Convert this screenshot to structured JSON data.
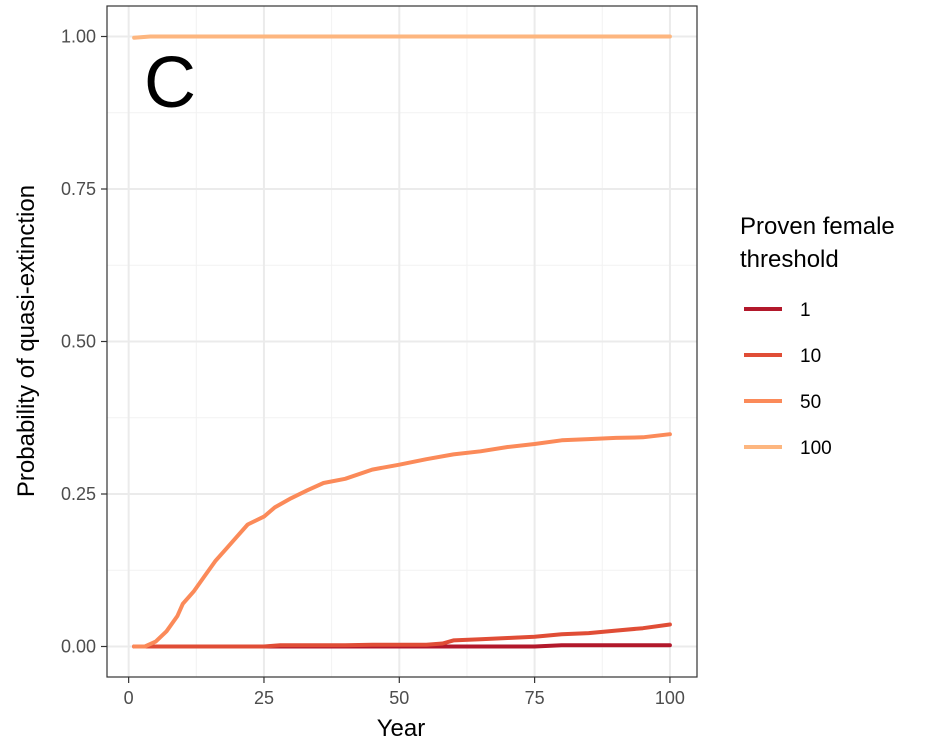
{
  "chart_data": {
    "type": "line",
    "panel_label": "C",
    "xlabel": "Year",
    "ylabel": "Probability of quasi-extinction",
    "xlim": [
      -4,
      105
    ],
    "ylim": [
      -0.05,
      1.05
    ],
    "x_ticks": [
      0,
      25,
      50,
      75,
      100
    ],
    "x_tick_labels": [
      "0",
      "25",
      "50",
      "75",
      "100"
    ],
    "y_ticks": [
      0,
      0.25,
      0.5,
      0.75,
      1
    ],
    "y_tick_labels": [
      "0.00",
      "0.25",
      "0.50",
      "0.75",
      "1.00"
    ],
    "grid": true,
    "legend": {
      "title_lines": [
        "Proven female",
        "threshold"
      ],
      "placement": "right"
    },
    "series": [
      {
        "name": "1",
        "color": "#b2182b",
        "points": [
          [
            1,
            0
          ],
          [
            20,
            0
          ],
          [
            40,
            0
          ],
          [
            60,
            0
          ],
          [
            75,
            0
          ],
          [
            80,
            0.002
          ],
          [
            90,
            0.002
          ],
          [
            100,
            0.002
          ]
        ]
      },
      {
        "name": "10",
        "color": "#e04d36",
        "points": [
          [
            1,
            0
          ],
          [
            10,
            0
          ],
          [
            25,
            0
          ],
          [
            28,
            0.002
          ],
          [
            40,
            0.002
          ],
          [
            45,
            0.003
          ],
          [
            55,
            0.003
          ],
          [
            58,
            0.005
          ],
          [
            60,
            0.01
          ],
          [
            65,
            0.012
          ],
          [
            70,
            0.014
          ],
          [
            75,
            0.016
          ],
          [
            80,
            0.02
          ],
          [
            85,
            0.022
          ],
          [
            90,
            0.026
          ],
          [
            95,
            0.03
          ],
          [
            100,
            0.036
          ]
        ]
      },
      {
        "name": "50",
        "color": "#fb8a59",
        "points": [
          [
            1,
            0
          ],
          [
            3,
            0
          ],
          [
            5,
            0.008
          ],
          [
            7,
            0.025
          ],
          [
            9,
            0.05
          ],
          [
            10,
            0.07
          ],
          [
            12,
            0.09
          ],
          [
            14,
            0.115
          ],
          [
            16,
            0.14
          ],
          [
            18,
            0.16
          ],
          [
            20,
            0.18
          ],
          [
            22,
            0.2
          ],
          [
            25,
            0.213
          ],
          [
            27,
            0.228
          ],
          [
            30,
            0.243
          ],
          [
            33,
            0.256
          ],
          [
            36,
            0.268
          ],
          [
            40,
            0.275
          ],
          [
            45,
            0.29
          ],
          [
            50,
            0.298
          ],
          [
            55,
            0.307
          ],
          [
            60,
            0.315
          ],
          [
            65,
            0.32
          ],
          [
            70,
            0.327
          ],
          [
            75,
            0.332
          ],
          [
            80,
            0.338
          ],
          [
            85,
            0.34
          ],
          [
            90,
            0.342
          ],
          [
            95,
            0.343
          ],
          [
            100,
            0.348
          ]
        ]
      },
      {
        "name": "100",
        "color": "#fdb67f",
        "points": [
          [
            1,
            0.998
          ],
          [
            4,
            1.0
          ],
          [
            25,
            1.0
          ],
          [
            50,
            1.0
          ],
          [
            75,
            1.0
          ],
          [
            100,
            1.0
          ]
        ]
      }
    ]
  }
}
